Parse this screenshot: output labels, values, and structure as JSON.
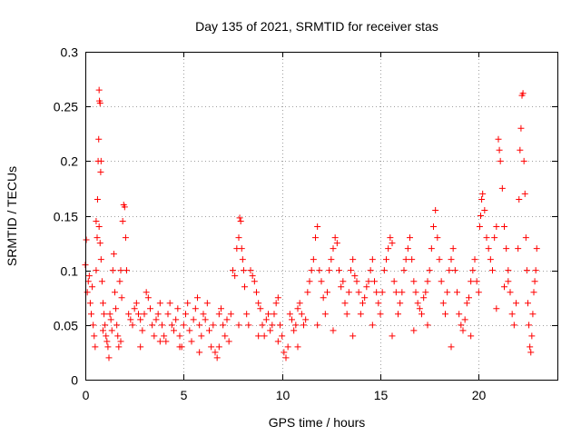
{
  "chart_data": {
    "type": "scatter",
    "title": "Day 135 of 2021, SRMTID for receiver stas",
    "xlabel": "GPS time / hours",
    "ylabel": "SRMTID / TECUs",
    "xlim": [
      0,
      24
    ],
    "ylim": [
      0,
      0.3
    ],
    "xticks": [
      0,
      5,
      10,
      15,
      20
    ],
    "xtick_labels": [
      "0",
      "5",
      "10",
      "15",
      "20"
    ],
    "yticks": [
      0,
      0.05,
      0.1,
      0.15,
      0.2,
      0.25,
      0.3
    ],
    "ytick_labels": [
      "0",
      "0.05",
      "0.1",
      "0.15",
      "0.2",
      "0.25",
      "0.3"
    ],
    "grid": true,
    "marker": "+",
    "color": "#ff0000",
    "series": [
      {
        "name": "SRMTID",
        "points": [
          [
            0.0,
            0.105
          ],
          [
            0.05,
            0.128
          ],
          [
            0.1,
            0.08
          ],
          [
            0.15,
            0.09
          ],
          [
            0.2,
            0.095
          ],
          [
            0.25,
            0.07
          ],
          [
            0.3,
            0.06
          ],
          [
            0.35,
            0.085
          ],
          [
            0.4,
            0.05
          ],
          [
            0.45,
            0.04
          ],
          [
            0.5,
            0.03
          ],
          [
            0.55,
            0.1
          ],
          [
            0.55,
            0.145
          ],
          [
            0.6,
            0.13
          ],
          [
            0.62,
            0.165
          ],
          [
            0.65,
            0.2
          ],
          [
            0.68,
            0.22
          ],
          [
            0.7,
            0.265
          ],
          [
            0.72,
            0.255
          ],
          [
            0.75,
            0.253
          ],
          [
            0.78,
            0.19
          ],
          [
            0.8,
            0.2
          ],
          [
            0.7,
            0.14
          ],
          [
            0.75,
            0.125
          ],
          [
            0.8,
            0.11
          ],
          [
            0.85,
            0.09
          ],
          [
            0.9,
            0.07
          ],
          [
            0.95,
            0.06
          ],
          [
            1.0,
            0.05
          ],
          [
            1.05,
            0.04
          ],
          [
            1.1,
            0.035
          ],
          [
            1.15,
            0.03
          ],
          [
            1.2,
            0.02
          ],
          [
            1.25,
            0.06
          ],
          [
            1.3,
            0.055
          ],
          [
            1.35,
            0.045
          ],
          [
            1.4,
            0.1
          ],
          [
            1.45,
            0.115
          ],
          [
            1.5,
            0.08
          ],
          [
            1.55,
            0.065
          ],
          [
            1.6,
            0.05
          ],
          [
            1.65,
            0.04
          ],
          [
            1.7,
            0.03
          ],
          [
            1.75,
            0.09
          ],
          [
            1.8,
            0.1
          ],
          [
            1.85,
            0.075
          ],
          [
            1.9,
            0.145
          ],
          [
            1.95,
            0.16
          ],
          [
            2.0,
            0.158
          ],
          [
            2.05,
            0.13
          ],
          [
            2.1,
            0.1
          ],
          [
            2.2,
            0.06
          ],
          [
            2.3,
            0.055
          ],
          [
            2.4,
            0.05
          ],
          [
            2.5,
            0.065
          ],
          [
            2.6,
            0.07
          ],
          [
            2.7,
            0.06
          ],
          [
            2.8,
            0.055
          ],
          [
            2.9,
            0.045
          ],
          [
            3.0,
            0.06
          ],
          [
            3.1,
            0.08
          ],
          [
            3.2,
            0.075
          ],
          [
            3.3,
            0.065
          ],
          [
            3.4,
            0.05
          ],
          [
            3.5,
            0.04
          ],
          [
            3.6,
            0.055
          ],
          [
            3.7,
            0.06
          ],
          [
            3.8,
            0.07
          ],
          [
            3.9,
            0.05
          ],
          [
            4.0,
            0.04
          ],
          [
            4.1,
            0.035
          ],
          [
            4.2,
            0.06
          ],
          [
            4.3,
            0.07
          ],
          [
            4.4,
            0.05
          ],
          [
            4.5,
            0.045
          ],
          [
            4.6,
            0.055
          ],
          [
            4.7,
            0.065
          ],
          [
            4.8,
            0.04
          ],
          [
            4.9,
            0.03
          ],
          [
            5.0,
            0.05
          ],
          [
            5.1,
            0.06
          ],
          [
            5.2,
            0.07
          ],
          [
            5.3,
            0.045
          ],
          [
            5.4,
            0.035
          ],
          [
            5.5,
            0.055
          ],
          [
            5.6,
            0.065
          ],
          [
            5.7,
            0.075
          ],
          [
            5.8,
            0.05
          ],
          [
            5.9,
            0.04
          ],
          [
            6.0,
            0.06
          ],
          [
            6.1,
            0.055
          ],
          [
            6.2,
            0.07
          ],
          [
            6.3,
            0.045
          ],
          [
            6.4,
            0.03
          ],
          [
            6.5,
            0.05
          ],
          [
            6.6,
            0.025
          ],
          [
            6.7,
            0.02
          ],
          [
            6.8,
            0.06
          ],
          [
            6.9,
            0.065
          ],
          [
            7.0,
            0.05
          ],
          [
            7.1,
            0.04
          ],
          [
            7.2,
            0.055
          ],
          [
            7.3,
            0.035
          ],
          [
            7.4,
            0.06
          ],
          [
            7.5,
            0.1
          ],
          [
            7.6,
            0.095
          ],
          [
            7.7,
            0.12
          ],
          [
            7.8,
            0.13
          ],
          [
            7.85,
            0.148
          ],
          [
            7.9,
            0.145
          ],
          [
            7.95,
            0.12
          ],
          [
            8.0,
            0.11
          ],
          [
            8.05,
            0.1
          ],
          [
            8.1,
            0.085
          ],
          [
            8.2,
            0.06
          ],
          [
            8.3,
            0.05
          ],
          [
            8.4,
            0.1
          ],
          [
            8.5,
            0.095
          ],
          [
            8.6,
            0.09
          ],
          [
            8.7,
            0.08
          ],
          [
            8.8,
            0.07
          ],
          [
            8.9,
            0.065
          ],
          [
            9.0,
            0.05
          ],
          [
            9.1,
            0.04
          ],
          [
            9.2,
            0.055
          ],
          [
            9.3,
            0.06
          ],
          [
            9.4,
            0.045
          ],
          [
            9.5,
            0.05
          ],
          [
            9.6,
            0.06
          ],
          [
            9.7,
            0.07
          ],
          [
            9.8,
            0.075
          ],
          [
            9.9,
            0.05
          ],
          [
            10.0,
            0.04
          ],
          [
            10.1,
            0.025
          ],
          [
            10.2,
            0.02
          ],
          [
            10.3,
            0.03
          ],
          [
            10.4,
            0.06
          ],
          [
            10.5,
            0.055
          ],
          [
            10.6,
            0.045
          ],
          [
            10.7,
            0.05
          ],
          [
            10.8,
            0.065
          ],
          [
            10.9,
            0.07
          ],
          [
            11.0,
            0.06
          ],
          [
            11.1,
            0.05
          ],
          [
            11.2,
            0.055
          ],
          [
            11.3,
            0.08
          ],
          [
            11.4,
            0.09
          ],
          [
            11.5,
            0.1
          ],
          [
            11.6,
            0.11
          ],
          [
            11.7,
            0.13
          ],
          [
            11.8,
            0.14
          ],
          [
            11.9,
            0.1
          ],
          [
            12.0,
            0.09
          ],
          [
            12.1,
            0.075
          ],
          [
            12.2,
            0.06
          ],
          [
            12.3,
            0.08
          ],
          [
            12.4,
            0.1
          ],
          [
            12.5,
            0.11
          ],
          [
            12.6,
            0.12
          ],
          [
            12.7,
            0.13
          ],
          [
            12.8,
            0.125
          ],
          [
            12.9,
            0.1
          ],
          [
            13.0,
            0.085
          ],
          [
            13.1,
            0.09
          ],
          [
            13.2,
            0.07
          ],
          [
            13.3,
            0.06
          ],
          [
            13.4,
            0.08
          ],
          [
            13.5,
            0.1
          ],
          [
            13.6,
            0.11
          ],
          [
            13.7,
            0.095
          ],
          [
            13.8,
            0.09
          ],
          [
            13.9,
            0.08
          ],
          [
            14.0,
            0.06
          ],
          [
            14.1,
            0.07
          ],
          [
            14.2,
            0.075
          ],
          [
            14.3,
            0.085
          ],
          [
            14.4,
            0.09
          ],
          [
            14.5,
            0.1
          ],
          [
            14.6,
            0.11
          ],
          [
            14.7,
            0.09
          ],
          [
            14.8,
            0.08
          ],
          [
            14.9,
            0.07
          ],
          [
            15.0,
            0.06
          ],
          [
            15.1,
            0.08
          ],
          [
            15.2,
            0.1
          ],
          [
            15.3,
            0.11
          ],
          [
            15.4,
            0.12
          ],
          [
            15.5,
            0.13
          ],
          [
            15.6,
            0.125
          ],
          [
            15.7,
            0.09
          ],
          [
            15.8,
            0.08
          ],
          [
            15.9,
            0.06
          ],
          [
            16.0,
            0.07
          ],
          [
            16.1,
            0.08
          ],
          [
            16.2,
            0.1
          ],
          [
            16.3,
            0.11
          ],
          [
            16.4,
            0.12
          ],
          [
            16.5,
            0.13
          ],
          [
            16.6,
            0.11
          ],
          [
            16.7,
            0.09
          ],
          [
            16.8,
            0.08
          ],
          [
            16.9,
            0.07
          ],
          [
            17.0,
            0.065
          ],
          [
            17.1,
            0.06
          ],
          [
            17.2,
            0.075
          ],
          [
            17.3,
            0.08
          ],
          [
            17.4,
            0.09
          ],
          [
            17.5,
            0.1
          ],
          [
            17.6,
            0.12
          ],
          [
            17.7,
            0.14
          ],
          [
            17.8,
            0.155
          ],
          [
            17.9,
            0.13
          ],
          [
            18.0,
            0.11
          ],
          [
            18.1,
            0.09
          ],
          [
            18.2,
            0.07
          ],
          [
            18.3,
            0.06
          ],
          [
            18.4,
            0.08
          ],
          [
            18.5,
            0.1
          ],
          [
            18.6,
            0.11
          ],
          [
            18.7,
            0.12
          ],
          [
            18.8,
            0.1
          ],
          [
            18.9,
            0.08
          ],
          [
            19.0,
            0.06
          ],
          [
            19.1,
            0.05
          ],
          [
            19.2,
            0.045
          ],
          [
            19.3,
            0.055
          ],
          [
            19.4,
            0.07
          ],
          [
            19.5,
            0.075
          ],
          [
            19.6,
            0.09
          ],
          [
            19.7,
            0.1
          ],
          [
            19.8,
            0.11
          ],
          [
            19.9,
            0.09
          ],
          [
            20.0,
            0.08
          ],
          [
            20.05,
            0.14
          ],
          [
            20.1,
            0.15
          ],
          [
            20.15,
            0.165
          ],
          [
            20.2,
            0.17
          ],
          [
            20.3,
            0.155
          ],
          [
            20.4,
            0.13
          ],
          [
            20.5,
            0.12
          ],
          [
            20.6,
            0.11
          ],
          [
            20.7,
            0.1
          ],
          [
            20.8,
            0.13
          ],
          [
            20.9,
            0.14
          ],
          [
            21.0,
            0.22
          ],
          [
            21.05,
            0.21
          ],
          [
            21.1,
            0.2
          ],
          [
            21.2,
            0.175
          ],
          [
            21.3,
            0.14
          ],
          [
            21.4,
            0.12
          ],
          [
            21.5,
            0.1
          ],
          [
            21.6,
            0.08
          ],
          [
            21.7,
            0.06
          ],
          [
            21.8,
            0.05
          ],
          [
            21.9,
            0.07
          ],
          [
            22.0,
            0.12
          ],
          [
            22.05,
            0.165
          ],
          [
            22.1,
            0.21
          ],
          [
            22.15,
            0.23
          ],
          [
            22.2,
            0.26
          ],
          [
            22.25,
            0.262
          ],
          [
            22.3,
            0.2
          ],
          [
            22.35,
            0.17
          ],
          [
            22.4,
            0.13
          ],
          [
            22.45,
            0.1
          ],
          [
            22.5,
            0.07
          ],
          [
            22.55,
            0.05
          ],
          [
            22.6,
            0.03
          ],
          [
            22.65,
            0.025
          ],
          [
            22.7,
            0.04
          ],
          [
            22.75,
            0.06
          ],
          [
            22.8,
            0.08
          ],
          [
            22.85,
            0.09
          ],
          [
            22.9,
            0.1
          ],
          [
            22.95,
            0.12
          ],
          [
            21.3,
            0.085
          ],
          [
            21.5,
            0.09
          ],
          [
            20.9,
            0.065
          ],
          [
            19.6,
            0.04
          ],
          [
            18.6,
            0.03
          ],
          [
            17.4,
            0.05
          ],
          [
            16.7,
            0.045
          ],
          [
            15.6,
            0.04
          ],
          [
            14.6,
            0.05
          ],
          [
            13.6,
            0.04
          ],
          [
            12.6,
            0.045
          ],
          [
            11.8,
            0.05
          ],
          [
            10.8,
            0.03
          ],
          [
            9.8,
            0.035
          ],
          [
            8.8,
            0.04
          ],
          [
            7.8,
            0.05
          ],
          [
            6.8,
            0.03
          ],
          [
            5.8,
            0.025
          ],
          [
            4.8,
            0.03
          ],
          [
            3.8,
            0.035
          ],
          [
            2.8,
            0.03
          ],
          [
            1.8,
            0.035
          ],
          [
            0.9,
            0.045
          ]
        ]
      }
    ]
  }
}
